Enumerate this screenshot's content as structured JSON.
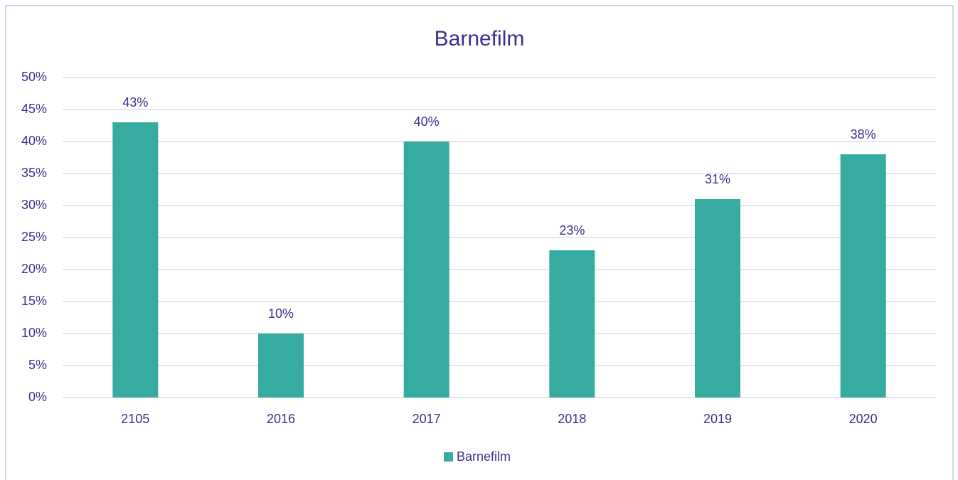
{
  "chart_data": {
    "type": "bar",
    "title": "Barnefilm",
    "categories": [
      "2105",
      "2016",
      "2017",
      "2018",
      "2019",
      "2020"
    ],
    "series": [
      {
        "name": "Barnefilm",
        "color": "#36ab9f",
        "values": [
          43,
          10,
          40,
          23,
          31,
          38
        ],
        "value_labels": [
          "43%",
          "10%",
          "40%",
          "23%",
          "31%",
          "38%"
        ]
      }
    ],
    "ylim": [
      0,
      50
    ],
    "yticks": [
      {
        "value": 0,
        "label": "0%"
      },
      {
        "value": 5,
        "label": "5%"
      },
      {
        "value": 10,
        "label": "10%"
      },
      {
        "value": 15,
        "label": "15%"
      },
      {
        "value": 20,
        "label": "20%"
      },
      {
        "value": 25,
        "label": "25%"
      },
      {
        "value": 30,
        "label": "30%"
      },
      {
        "value": 35,
        "label": "35%"
      },
      {
        "value": 40,
        "label": "40%"
      },
      {
        "value": 45,
        "label": "45%"
      },
      {
        "value": 50,
        "label": "50%"
      }
    ],
    "grid": true,
    "legend": "bottom"
  }
}
